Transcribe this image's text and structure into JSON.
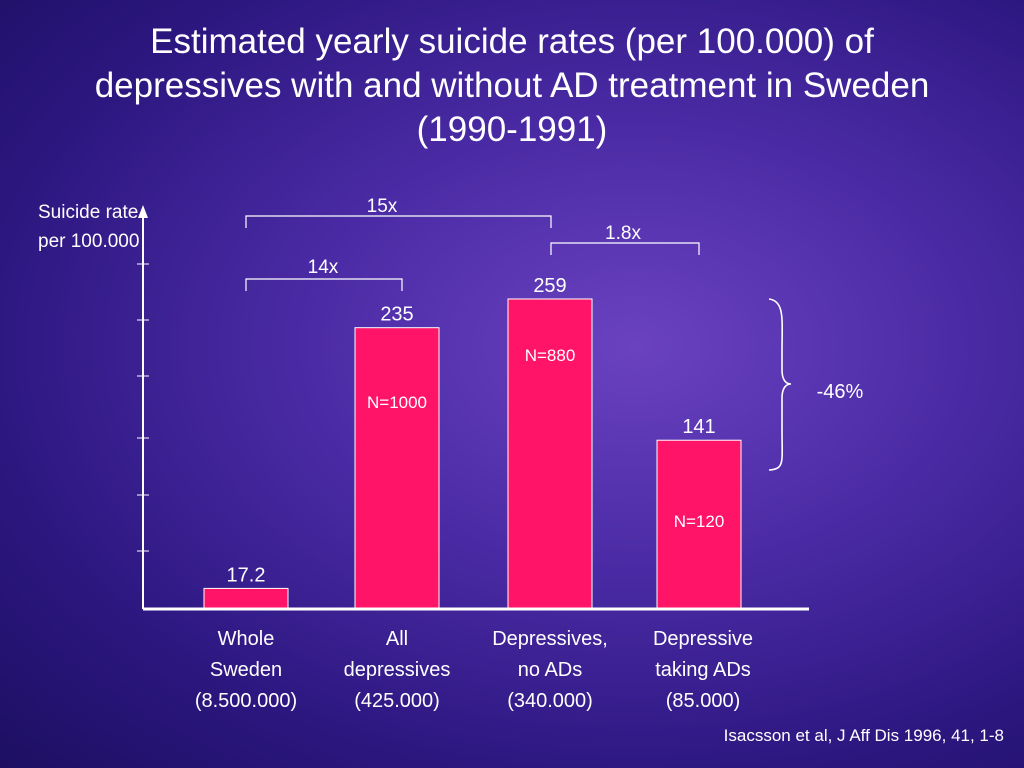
{
  "slide": {
    "title": "Estimated yearly suicide rates (per 100.000) of depressives with and without AD treatment in Sweden (1990-1991)",
    "citation": "Isacsson et al, J Aff Dis 1996, 41, 1-8"
  },
  "chart_data": {
    "type": "bar",
    "ylabel": "Suicide rate per 100.000",
    "ylim": [
      0,
      300
    ],
    "grid": false,
    "bar_color": "#ff1468",
    "categories": [
      "Whole Sweden (8.500.000)",
      "All depressives (425.000)",
      "Depressives, no ADs (340.000)",
      "Depressive taking ADs (85.000)"
    ],
    "category_lines": [
      [
        "Whole",
        "Sweden",
        "(8.500.000)"
      ],
      [
        "All",
        "depressives",
        "(425.000)"
      ],
      [
        "Depressives,",
        "no ADs",
        "(340.000)"
      ],
      [
        "Depressive",
        "taking ADs",
        "(85.000)"
      ]
    ],
    "values": [
      17.2,
      235,
      259,
      141
    ],
    "value_labels": [
      "17.2",
      "235",
      "259",
      "141"
    ],
    "sample_labels": [
      "",
      "N=1000",
      "N=880",
      "N=120"
    ],
    "annotations": [
      {
        "text": "15x",
        "from": 0,
        "to": 2
      },
      {
        "text": "14x",
        "from": 0,
        "to": 1
      },
      {
        "text": "1.8x",
        "from": 2,
        "to": 3
      },
      {
        "text": "-46%",
        "from": 2,
        "to": 3
      }
    ]
  }
}
